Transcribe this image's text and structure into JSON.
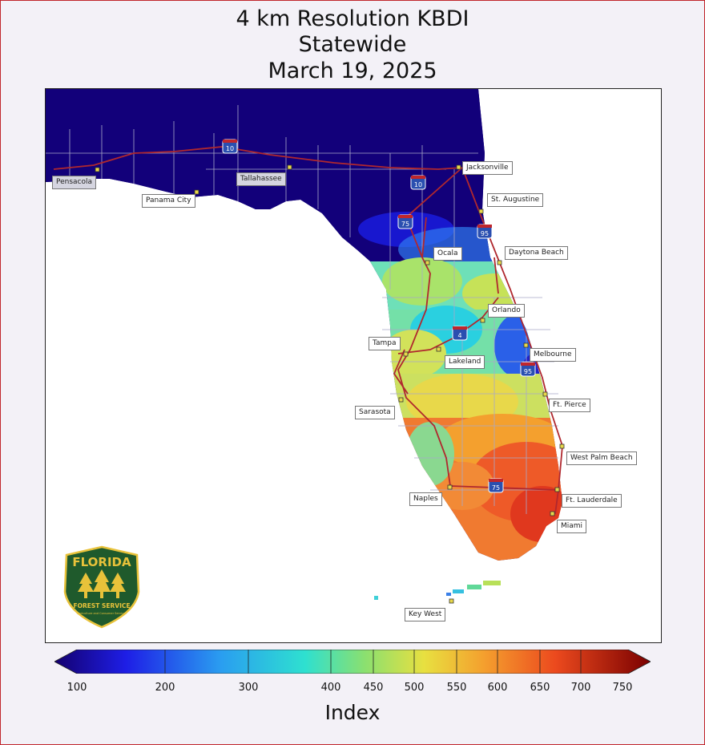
{
  "title": {
    "line1": "4 km Resolution KBDI",
    "line2": "Statewide",
    "line3": "March 19, 2025"
  },
  "cities": [
    {
      "name": "Pensacola"
    },
    {
      "name": "Panama City"
    },
    {
      "name": "Tallahassee"
    },
    {
      "name": "Jacksonville"
    },
    {
      "name": "St. Augustine"
    },
    {
      "name": "Ocala"
    },
    {
      "name": "Daytona Beach"
    },
    {
      "name": "Orlando"
    },
    {
      "name": "Tampa"
    },
    {
      "name": "Lakeland"
    },
    {
      "name": "Melbourne"
    },
    {
      "name": "Sarasota"
    },
    {
      "name": "Ft. Pierce"
    },
    {
      "name": "West Palm Beach"
    },
    {
      "name": "Naples"
    },
    {
      "name": "Ft. Lauderdale"
    },
    {
      "name": "Miami"
    },
    {
      "name": "Key West"
    }
  ],
  "interstates": [
    "10",
    "10",
    "75",
    "95",
    "4",
    "95",
    "75"
  ],
  "colorbar": {
    "title": "Index",
    "ticks": [
      "100",
      "200",
      "300",
      "400",
      "450",
      "500",
      "550",
      "600",
      "650",
      "700",
      "750"
    ],
    "values": [
      100,
      200,
      300,
      400,
      450,
      500,
      550,
      600,
      650,
      700,
      750
    ],
    "range": [
      100,
      750
    ]
  },
  "logo": {
    "top_text": "FLORIDA",
    "bottom_text": "FOREST SERVICE",
    "sub_text": "Agriculture and Consumer Services",
    "color": "#1f5a2c",
    "accent": "#e8c23a"
  },
  "colors": {
    "low": "#12007a",
    "background_water": "#ffffff"
  }
}
